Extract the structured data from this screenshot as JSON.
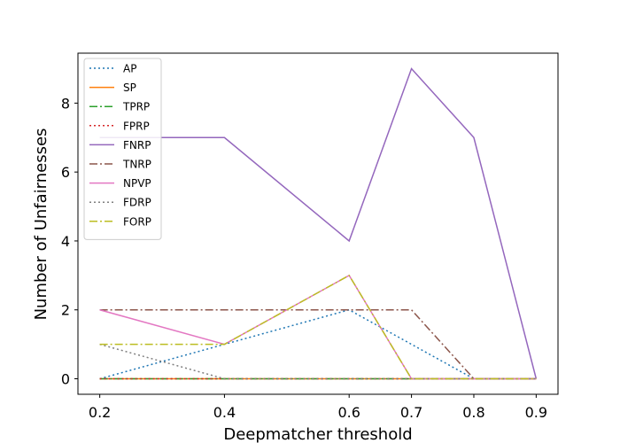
{
  "chart_data": {
    "type": "line",
    "xlabel": "Deepmatcher threshold",
    "ylabel": "Number of Unfairnesses",
    "x": [
      0.2,
      0.4,
      0.6,
      0.7,
      0.8,
      0.9
    ],
    "x_ticks": [
      "0.2",
      "0.4",
      "0.6",
      "0.7",
      "0.8",
      "0.9"
    ],
    "y_ticks": [
      "0",
      "2",
      "4",
      "6",
      "8"
    ],
    "ylim": [
      -0.45,
      9.45
    ],
    "grid": false,
    "legend_position": "top-left",
    "series": [
      {
        "name": "AP",
        "values": [
          0,
          1,
          2,
          1,
          0,
          0
        ],
        "color": "#1f77b4",
        "dash": "dotted"
      },
      {
        "name": "SP",
        "values": [
          0,
          0,
          0,
          0,
          0,
          0
        ],
        "color": "#ff7f0e",
        "dash": "solid"
      },
      {
        "name": "TPRP",
        "values": [
          0,
          0,
          0,
          0,
          0,
          0
        ],
        "color": "#2ca02c",
        "dash": "dashdot"
      },
      {
        "name": "FPRP",
        "values": [
          0,
          0,
          0,
          0,
          0,
          0
        ],
        "color": "#d62728",
        "dash": "dotted"
      },
      {
        "name": "FNRP",
        "values": [
          7,
          7,
          4,
          9,
          7,
          0
        ],
        "color": "#9467bd",
        "dash": "solid"
      },
      {
        "name": "TNRP",
        "values": [
          2,
          2,
          2,
          2,
          0,
          0
        ],
        "color": "#8c564b",
        "dash": "dashdot"
      },
      {
        "name": "NPVP",
        "values": [
          2,
          1,
          3,
          0,
          0,
          0
        ],
        "color": "#e377c2",
        "dash": "solid"
      },
      {
        "name": "FDRP",
        "values": [
          1,
          0,
          0,
          0,
          0,
          0
        ],
        "color": "#7f7f7f",
        "dash": "dotted"
      },
      {
        "name": "FORP",
        "values": [
          1,
          1,
          3,
          0,
          0,
          0
        ],
        "color": "#bcbd22",
        "dash": "dashdot"
      }
    ]
  }
}
